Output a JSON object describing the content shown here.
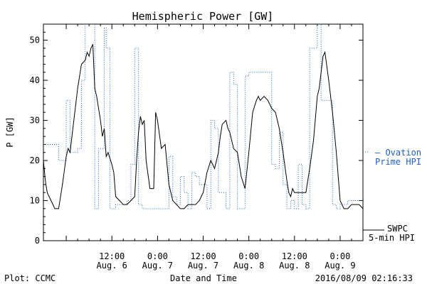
{
  "chart_data": {
    "type": "line",
    "title": "Hemispheric Power [GW]",
    "ylabel": "P [GW]",
    "xlabel": "Date and Time",
    "ylim": [
      0,
      54
    ],
    "xlim_hours": [
      -6,
      78
    ],
    "yticks": [
      0,
      10,
      20,
      30,
      40,
      50
    ],
    "xticks": [
      {
        "h": 12,
        "time": "12:00",
        "date": "Aug. 6"
      },
      {
        "h": 24,
        "time": "0:00",
        "date": "Aug. 7"
      },
      {
        "h": 36,
        "time": "12:00",
        "date": "Aug. 7"
      },
      {
        "h": 48,
        "time": "0:00",
        "date": "Aug. 8"
      },
      {
        "h": 60,
        "time": "12:00",
        "date": "Aug. 8"
      },
      {
        "h": 72,
        "time": "0:00",
        "date": "Aug. 9"
      }
    ],
    "grid": false,
    "series": [
      {
        "name": "SWPC 5-min HPI",
        "legend_lines": [
          "SWPC",
          "5-min HPI"
        ],
        "color": "#000000",
        "style": "solid",
        "points": [
          [
            -6,
            20
          ],
          [
            -5.5,
            15
          ],
          [
            -5,
            12
          ],
          [
            -4,
            10
          ],
          [
            -3,
            8
          ],
          [
            -2,
            8
          ],
          [
            -1,
            14
          ],
          [
            0,
            21
          ],
          [
            0.5,
            23
          ],
          [
            1,
            22
          ],
          [
            2,
            30
          ],
          [
            3,
            38
          ],
          [
            4,
            44
          ],
          [
            5,
            45
          ],
          [
            5.5,
            47
          ],
          [
            6,
            46
          ],
          [
            6.5,
            48
          ],
          [
            7,
            49
          ],
          [
            7.5,
            38
          ],
          [
            8,
            36
          ],
          [
            9,
            30
          ],
          [
            9.5,
            26
          ],
          [
            10,
            28
          ],
          [
            10.5,
            21
          ],
          [
            11,
            22
          ],
          [
            12,
            19
          ],
          [
            12.5,
            17
          ],
          [
            13,
            11
          ],
          [
            14,
            10
          ],
          [
            15,
            9
          ],
          [
            16,
            9
          ],
          [
            17,
            10
          ],
          [
            18,
            11
          ],
          [
            18.5,
            20
          ],
          [
            19,
            27
          ],
          [
            19.5,
            31
          ],
          [
            20,
            29
          ],
          [
            20.5,
            30
          ],
          [
            21,
            20
          ],
          [
            22,
            13
          ],
          [
            23,
            13
          ],
          [
            23.5,
            32
          ],
          [
            24,
            30
          ],
          [
            25,
            23
          ],
          [
            26,
            24
          ],
          [
            27,
            14
          ],
          [
            28,
            10
          ],
          [
            29,
            9
          ],
          [
            30,
            8
          ],
          [
            31,
            8
          ],
          [
            32,
            9
          ],
          [
            33,
            9
          ],
          [
            34,
            9
          ],
          [
            35,
            10
          ],
          [
            36,
            12
          ],
          [
            37,
            17
          ],
          [
            38,
            20
          ],
          [
            39,
            18
          ],
          [
            40,
            22
          ],
          [
            40.5,
            26
          ],
          [
            41,
            29
          ],
          [
            42,
            30
          ],
          [
            42.5,
            28
          ],
          [
            43,
            27
          ],
          [
            44,
            23
          ],
          [
            45,
            22
          ],
          [
            46,
            16
          ],
          [
            47,
            13
          ],
          [
            48,
            22
          ],
          [
            48.5,
            27
          ],
          [
            49,
            32
          ],
          [
            50,
            35
          ],
          [
            50.5,
            36
          ],
          [
            51,
            35
          ],
          [
            52,
            36
          ],
          [
            53,
            35
          ],
          [
            54,
            33
          ],
          [
            55,
            32
          ],
          [
            56,
            28
          ],
          [
            57,
            22
          ],
          [
            58,
            15
          ],
          [
            58.5,
            12
          ],
          [
            59,
            11
          ],
          [
            59.5,
            13
          ],
          [
            60,
            12
          ],
          [
            61,
            12
          ],
          [
            62,
            12
          ],
          [
            63,
            12
          ],
          [
            64,
            18
          ],
          [
            65,
            25
          ],
          [
            66,
            36
          ],
          [
            66.5,
            38
          ],
          [
            67,
            42
          ],
          [
            67.5,
            46
          ],
          [
            68,
            47
          ],
          [
            69,
            40
          ],
          [
            70,
            32
          ],
          [
            71,
            22
          ],
          [
            72,
            10
          ],
          [
            73,
            8
          ],
          [
            74,
            8
          ],
          [
            75,
            9
          ],
          [
            76,
            9
          ],
          [
            77,
            9
          ],
          [
            78,
            8
          ]
        ]
      },
      {
        "name": "Ovation Prime HPI",
        "legend_lines": [
          "— Ovation",
          "Prime HPI"
        ],
        "color": "#1f5fbf",
        "style": "dotted",
        "points": [
          [
            -6,
            24
          ],
          [
            -4,
            24
          ],
          [
            -2,
            20
          ],
          [
            0,
            35
          ],
          [
            1,
            22
          ],
          [
            3,
            23
          ],
          [
            4,
            40
          ],
          [
            5,
            54
          ],
          [
            7,
            54
          ],
          [
            7.5,
            8
          ],
          [
            8,
            8
          ],
          [
            8.5,
            23
          ],
          [
            9,
            23
          ],
          [
            10,
            53
          ],
          [
            10.5,
            48
          ],
          [
            11,
            48
          ],
          [
            11.5,
            8
          ],
          [
            12,
            8
          ],
          [
            13,
            9
          ],
          [
            14,
            9
          ],
          [
            15,
            9
          ],
          [
            16,
            10
          ],
          [
            17,
            19
          ],
          [
            18,
            48
          ],
          [
            19,
            9
          ],
          [
            20,
            8
          ],
          [
            21,
            8
          ],
          [
            22,
            8
          ],
          [
            23,
            8
          ],
          [
            24,
            8
          ],
          [
            25,
            8
          ],
          [
            26,
            8
          ],
          [
            27,
            21
          ],
          [
            28,
            11
          ],
          [
            29,
            9
          ],
          [
            30,
            16
          ],
          [
            31,
            12
          ],
          [
            32,
            8
          ],
          [
            33,
            17
          ],
          [
            34,
            16
          ],
          [
            35,
            14
          ],
          [
            36,
            14
          ],
          [
            37,
            8
          ],
          [
            38,
            30
          ],
          [
            39,
            28
          ],
          [
            40,
            12
          ],
          [
            41,
            12
          ],
          [
            42,
            8
          ],
          [
            43,
            42
          ],
          [
            44,
            39
          ],
          [
            45,
            8
          ],
          [
            46,
            8
          ],
          [
            47,
            41
          ],
          [
            48,
            42
          ],
          [
            49,
            42
          ],
          [
            50,
            42
          ],
          [
            51,
            42
          ],
          [
            52,
            42
          ],
          [
            53,
            42
          ],
          [
            54,
            19
          ],
          [
            55,
            18
          ],
          [
            56,
            27
          ],
          [
            57,
            14
          ],
          [
            58,
            8
          ],
          [
            59,
            10
          ],
          [
            60,
            8
          ],
          [
            61,
            19
          ],
          [
            62,
            9
          ],
          [
            63,
            8
          ],
          [
            64,
            48
          ],
          [
            65,
            48
          ],
          [
            66,
            54
          ],
          [
            67,
            35
          ],
          [
            68,
            35
          ],
          [
            69,
            35
          ],
          [
            70,
            9
          ],
          [
            71,
            8
          ],
          [
            72,
            9
          ],
          [
            73,
            9
          ],
          [
            74,
            10
          ],
          [
            75,
            10
          ],
          [
            76,
            10
          ],
          [
            77,
            10
          ],
          [
            78,
            10
          ]
        ]
      }
    ]
  },
  "footer": {
    "left": "Plot: CCMC",
    "center": "Date and Time",
    "right": "2016/08/09 02:16:33"
  }
}
